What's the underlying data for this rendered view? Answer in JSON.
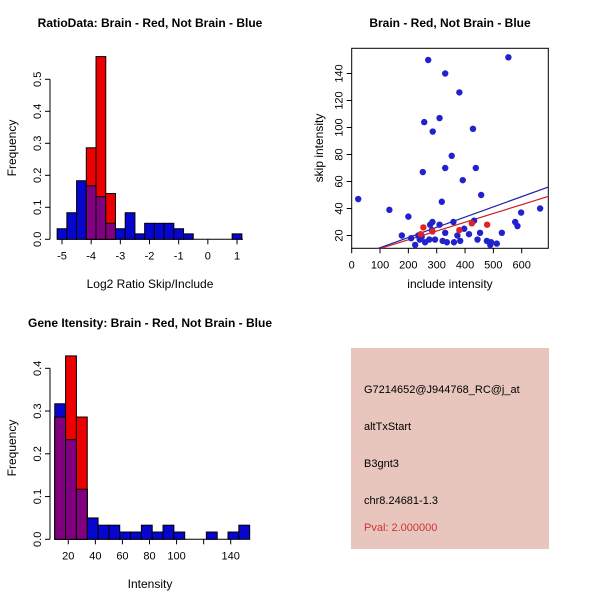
{
  "page": {
    "background": "#FFFFFF"
  },
  "colors": {
    "hist_blue": "#0606CE",
    "hist_red": "#EC0000",
    "hist_purple": "#800080",
    "point_blue": "#2222CC",
    "point_red": "#E32222",
    "line_blue": "#2020A4",
    "line_red": "#CC2020",
    "axis": "#000000"
  },
  "chart_data": [
    {
      "id": "ratio_histogram",
      "type": "bar",
      "subtype": "overlaid-histogram",
      "title": "RatioData: Brain - Red, Not Brain - Blue",
      "xlabel": "Log2 Ratio Skip/Include",
      "ylabel": "Frequency",
      "xlim": [
        -5.4,
        1.4
      ],
      "ylim": [
        0,
        0.575
      ],
      "x_ticks": {
        "values": [
          -5,
          -4,
          -3,
          -2,
          -1,
          0,
          1
        ],
        "labels": [
          "-5",
          "-4",
          "-3",
          "-2",
          "-1",
          "0",
          "1"
        ]
      },
      "y_ticks": {
        "values": [
          0,
          0.1,
          0.2,
          0.3,
          0.4,
          0.5
        ],
        "labels": [
          "0.0",
          "0.1",
          "0.2",
          "0.3",
          "0.4",
          "0.5"
        ]
      },
      "bins": {
        "start": -5.1667,
        "width": 0.33333
      },
      "series": [
        {
          "name": "Not Brain",
          "color_key": "hist_blue",
          "values": [
            0.033,
            0.083,
            0.183,
            0.167,
            0.133,
            0.05,
            0.033,
            0.083,
            0.017,
            0.05,
            0.05,
            0.05,
            0.033,
            0.017,
            0,
            0,
            0,
            0,
            0.017
          ]
        },
        {
          "name": "Brain",
          "color_key": "hist_red",
          "values": [
            0,
            0,
            0,
            0.286,
            0.571,
            0.143,
            0,
            0,
            0,
            0,
            0,
            0,
            0,
            0,
            0,
            0,
            0,
            0,
            0
          ]
        }
      ],
      "overlap_color_key": "hist_purple"
    },
    {
      "id": "intensity_scatter",
      "type": "scatter",
      "title": "Brain - Red, Not Brain - Blue",
      "xlabel": "include intensity",
      "ylabel": "skip intensity",
      "xlim": [
        -10,
        695
      ],
      "ylim": [
        10,
        158
      ],
      "x_ticks": {
        "values": [
          0,
          100,
          200,
          300,
          400,
          500,
          600
        ],
        "labels": [
          "0",
          "100",
          "200",
          "300",
          "400",
          "500",
          "600"
        ]
      },
      "y_ticks": {
        "values": [
          20,
          40,
          60,
          80,
          100,
          120,
          140
        ],
        "labels": [
          "20",
          "40",
          "60",
          "80",
          "100",
          "120",
          "140"
        ]
      },
      "series": [
        {
          "name": "Not Brain",
          "color_key": "point_blue",
          "points": [
            [
              23,
              47
            ],
            [
              133,
              39
            ],
            [
              177,
              20
            ],
            [
              200,
              34
            ],
            [
              210,
              18
            ],
            [
              224,
              13
            ],
            [
              235,
              20
            ],
            [
              240,
              17
            ],
            [
              247,
              19
            ],
            [
              251,
              67
            ],
            [
              256,
              104
            ],
            [
              259,
              15
            ],
            [
              270,
              150
            ],
            [
              274,
              17
            ],
            [
              277,
              28
            ],
            [
              283,
              24
            ],
            [
              285,
              30
            ],
            [
              286,
              97
            ],
            [
              294,
              17
            ],
            [
              310,
              107
            ],
            [
              310,
              28
            ],
            [
              318,
              45
            ],
            [
              321,
              16
            ],
            [
              330,
              140
            ],
            [
              330,
              70
            ],
            [
              330,
              22
            ],
            [
              336,
              15
            ],
            [
              353,
              79
            ],
            [
              359,
              30
            ],
            [
              361,
              15
            ],
            [
              373,
              20
            ],
            [
              380,
              126
            ],
            [
              383,
              16
            ],
            [
              392,
              61
            ],
            [
              397,
              25
            ],
            [
              414,
              21
            ],
            [
              428,
              99
            ],
            [
              432,
              31
            ],
            [
              438,
              70
            ],
            [
              444,
              17
            ],
            [
              453,
              22
            ],
            [
              457,
              50
            ],
            [
              477,
              16
            ],
            [
              489,
              13
            ],
            [
              492,
              15
            ],
            [
              512,
              14
            ],
            [
              530,
              22
            ],
            [
              553,
              152
            ],
            [
              577,
              30
            ],
            [
              585,
              27
            ],
            [
              598,
              37
            ],
            [
              665,
              40
            ]
          ]
        },
        {
          "name": "Brain",
          "color_key": "point_red",
          "points": [
            [
              244,
              21
            ],
            [
              253,
              26
            ],
            [
              285,
              23
            ],
            [
              380,
              24
            ],
            [
              424,
              29
            ],
            [
              478,
              28
            ]
          ]
        }
      ],
      "lines": [
        {
          "name": "fit-not-brain",
          "color_key": "line_blue",
          "from": [
            88,
            10
          ],
          "to": [
            695,
            56
          ]
        },
        {
          "name": "fit-brain",
          "color_key": "line_red",
          "from": [
            95,
            10
          ],
          "to": [
            695,
            49
          ]
        }
      ]
    },
    {
      "id": "gene_intensity_histogram",
      "type": "bar",
      "subtype": "overlaid-histogram",
      "title": "Gene Itensity: Brain - Red, Not Brain - Blue",
      "xlabel": "Intensity",
      "ylabel": "Frequency",
      "xlim": [
        8,
        158
      ],
      "ylim": [
        0,
        0.44
      ],
      "x_ticks": {
        "values": [
          20,
          40,
          60,
          80,
          100,
          120,
          140
        ],
        "labels": [
          "20",
          "40",
          "60",
          "80",
          "100",
          "",
          "140"
        ]
      },
      "y_ticks": {
        "values": [
          0,
          0.1,
          0.2,
          0.3,
          0.4
        ],
        "labels": [
          "0.0",
          "0.1",
          "0.2",
          "0.3",
          "0.4"
        ]
      },
      "bins": {
        "start": 10,
        "width": 8
      },
      "series": [
        {
          "name": "Not Brain",
          "color_key": "hist_blue",
          "values": [
            0.317,
            0.233,
            0.117,
            0.05,
            0.033,
            0.033,
            0.017,
            0.017,
            0.033,
            0.017,
            0.033,
            0.017,
            0,
            0,
            0.017,
            0,
            0.017,
            0.033
          ]
        },
        {
          "name": "Brain",
          "color_key": "hist_red",
          "values": [
            0.286,
            0.429,
            0.286,
            0,
            0,
            0,
            0,
            0,
            0,
            0,
            0,
            0,
            0,
            0,
            0,
            0,
            0,
            0
          ]
        }
      ],
      "overlap_color_key": "hist_purple"
    }
  ],
  "info_panel": {
    "background": "#E8C6BE",
    "lines": [
      {
        "text": "G7214652@J944768_RC@j_at",
        "color": "#000000"
      },
      {
        "text": "altTxStart",
        "color": "#000000"
      },
      {
        "text": "B3gnt3",
        "color": "#000000"
      },
      {
        "text": "chr8.24681-1.3",
        "color": "#000000"
      },
      {
        "text": "Pval: 2.000000",
        "color": "#CC3333"
      }
    ]
  }
}
